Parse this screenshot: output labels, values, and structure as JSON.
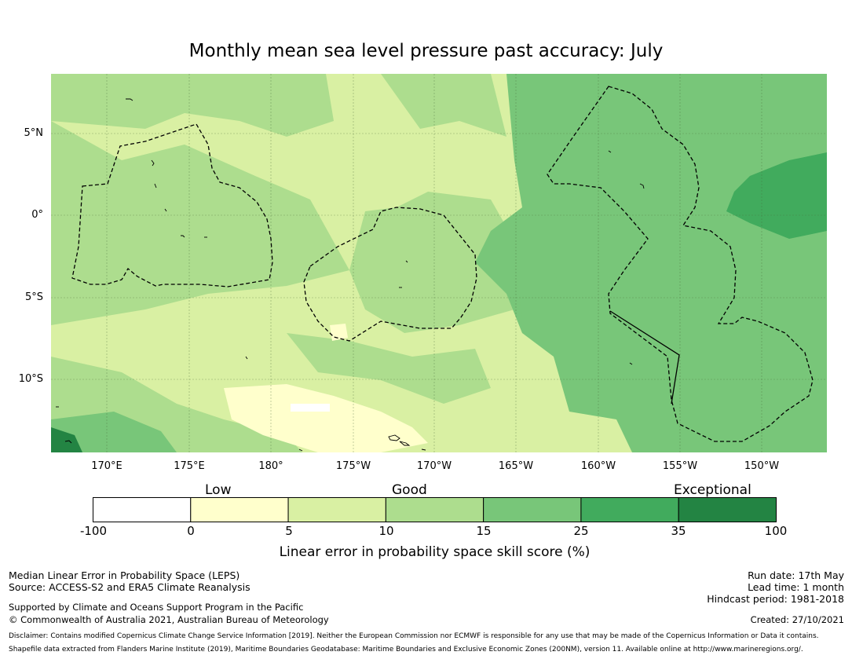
{
  "title": "Monthly mean sea level pressure past accuracy: July",
  "map": {
    "lat_labels": [
      "5°N",
      "0°",
      "5°S",
      "10°S"
    ],
    "lon_labels": [
      "170°E",
      "175°E",
      "180°",
      "175°W",
      "170°W",
      "165°W",
      "160°W",
      "155°W",
      "150°W"
    ]
  },
  "colorbar": {
    "captions": [
      "Low",
      "Good",
      "Exceptional"
    ],
    "ticks": [
      "-100",
      "0",
      "5",
      "10",
      "15",
      "25",
      "35",
      "100"
    ],
    "colors": [
      "#ffffff",
      "#ffffcc",
      "#d9f0a3",
      "#addd8e",
      "#78c679",
      "#41ab5d",
      "#238443"
    ],
    "label": "Linear error in probability space skill score (%)"
  },
  "footer": {
    "left1": "Median Linear Error in Probability Space (LEPS)",
    "left2": "Source: ACCESS-S2 and ERA5 Climate Reanalysis",
    "left3": "Supported by Climate and Oceans Support Program in the Pacific",
    "left4": "© Commonwealth of Australia 2021, Australian Bureau of Meteorology",
    "run_date": "Run date: 17th May",
    "lead_time": "Lead time: 1 month",
    "hindcast": "Hindcast period: 1981-2018",
    "created": "Created: 27/10/2021",
    "disclaimer1": "Disclaimer: Contains modified Copernicus Climate Change Service Information [2019]. Neither the European Commission nor ECMWF is responsible for any use that may be made of the Copernicus Information or Data it contains.",
    "disclaimer2": "Shapefile data extracted from Flanders Marine Institute (2019), Maritime Boundaries Geodatabase: Maritime Boundaries and Exclusive Economic Zones (200NM), version 11. Available online at http://www.marineregions.org/."
  }
}
